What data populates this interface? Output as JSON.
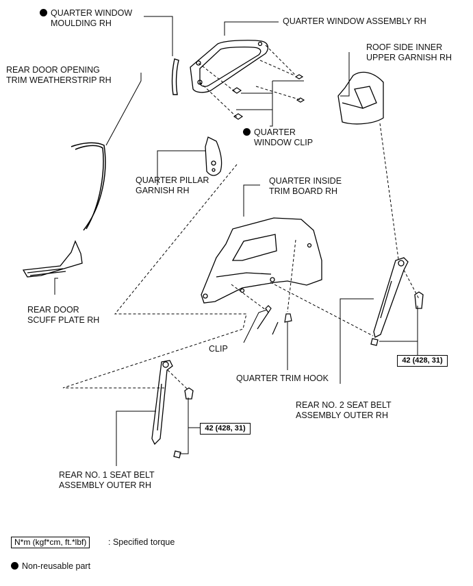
{
  "labels": {
    "quarter_window_moulding": [
      "QUARTER WINDOW",
      "MOULDING RH"
    ],
    "quarter_window_assembly": "QUARTER WINDOW ASSEMBLY RH",
    "roof_side_inner_upper_garnish": [
      "ROOF SIDE INNER",
      "UPPER GARNISH RH"
    ],
    "rear_door_opening_trim_weatherstrip": [
      "REAR DOOR OPENING",
      "TRIM WEATHERSTRIP RH"
    ],
    "quarter_window_clip": [
      "QUARTER",
      "WINDOW CLIP"
    ],
    "quarter_pillar_garnish": [
      "QUARTER PILLAR",
      "GARNISH RH"
    ],
    "quarter_inside_trim_board": [
      "QUARTER INSIDE",
      "TRIM BOARD RH"
    ],
    "rear_door_scuff_plate": [
      "REAR DOOR",
      "SCUFF PLATE RH"
    ],
    "clip": "CLIP",
    "quarter_trim_hook": "QUARTER TRIM HOOK",
    "rear_no2_seat_belt": [
      "REAR NO. 2 SEAT BELT",
      "ASSEMBLY OUTER RH"
    ],
    "rear_no1_seat_belt": [
      "REAR NO. 1 SEAT BELT",
      "ASSEMBLY OUTER RH"
    ]
  },
  "torque": {
    "no2_belt": "42 (428, 31)",
    "no1_belt": "42 (428, 31)"
  },
  "legend": {
    "torque_box": "N*m (kgf*cm, ft.*lbf)",
    "torque_text": ": Specified torque",
    "nonreusable_text": "Non-reusable part"
  }
}
